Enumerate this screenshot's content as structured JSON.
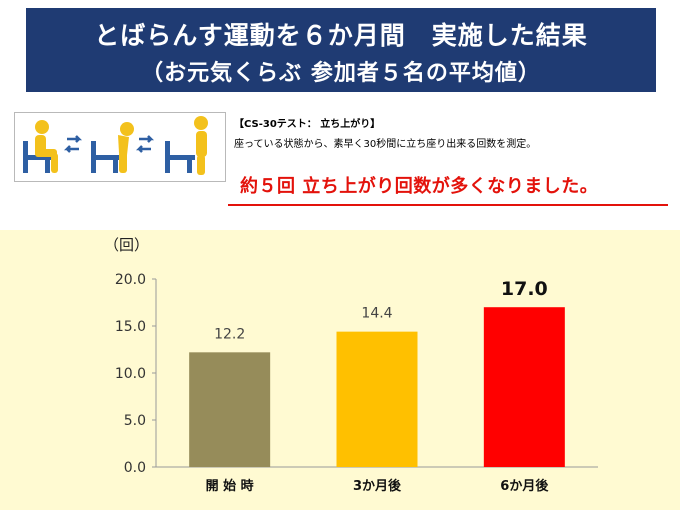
{
  "header": {
    "title": "とばらんす運動を６か月間　実施した結果",
    "subtitle": "（お元気くらぶ 参加者５名の平均値）"
  },
  "test_info": {
    "title": "【CS-30テスト： 立ち上がり】",
    "description": "座っている状態から、素早く30秒間に立ち座り出来る回数を測定。",
    "result": "約５回  立ち上がり回数が多くなりました。"
  },
  "colors": {
    "banner": "#1f3b73",
    "accent_red": "#e3120b",
    "chart_background": "#fffad2",
    "figure_yellow": "#f3c11c",
    "chair_blue": "#2e5fa3"
  },
  "chart_data": {
    "type": "bar",
    "ylabel": "（回）",
    "categories": [
      "開 始 時",
      "3か月後",
      "6か月後"
    ],
    "values": [
      12.2,
      14.4,
      17.0
    ],
    "value_labels": [
      "12.2",
      "14.4",
      "17.0"
    ],
    "bar_colors": [
      "#968c5a",
      "#ffc000",
      "#ff0000"
    ],
    "highlight_last": true,
    "ylim": [
      0,
      20
    ],
    "yticks": [
      "0.0",
      "5.0",
      "10.0",
      "15.0",
      "20.0"
    ],
    "ytick_values": [
      0,
      5,
      10,
      15,
      20
    ],
    "grid": false,
    "legend": "none"
  }
}
